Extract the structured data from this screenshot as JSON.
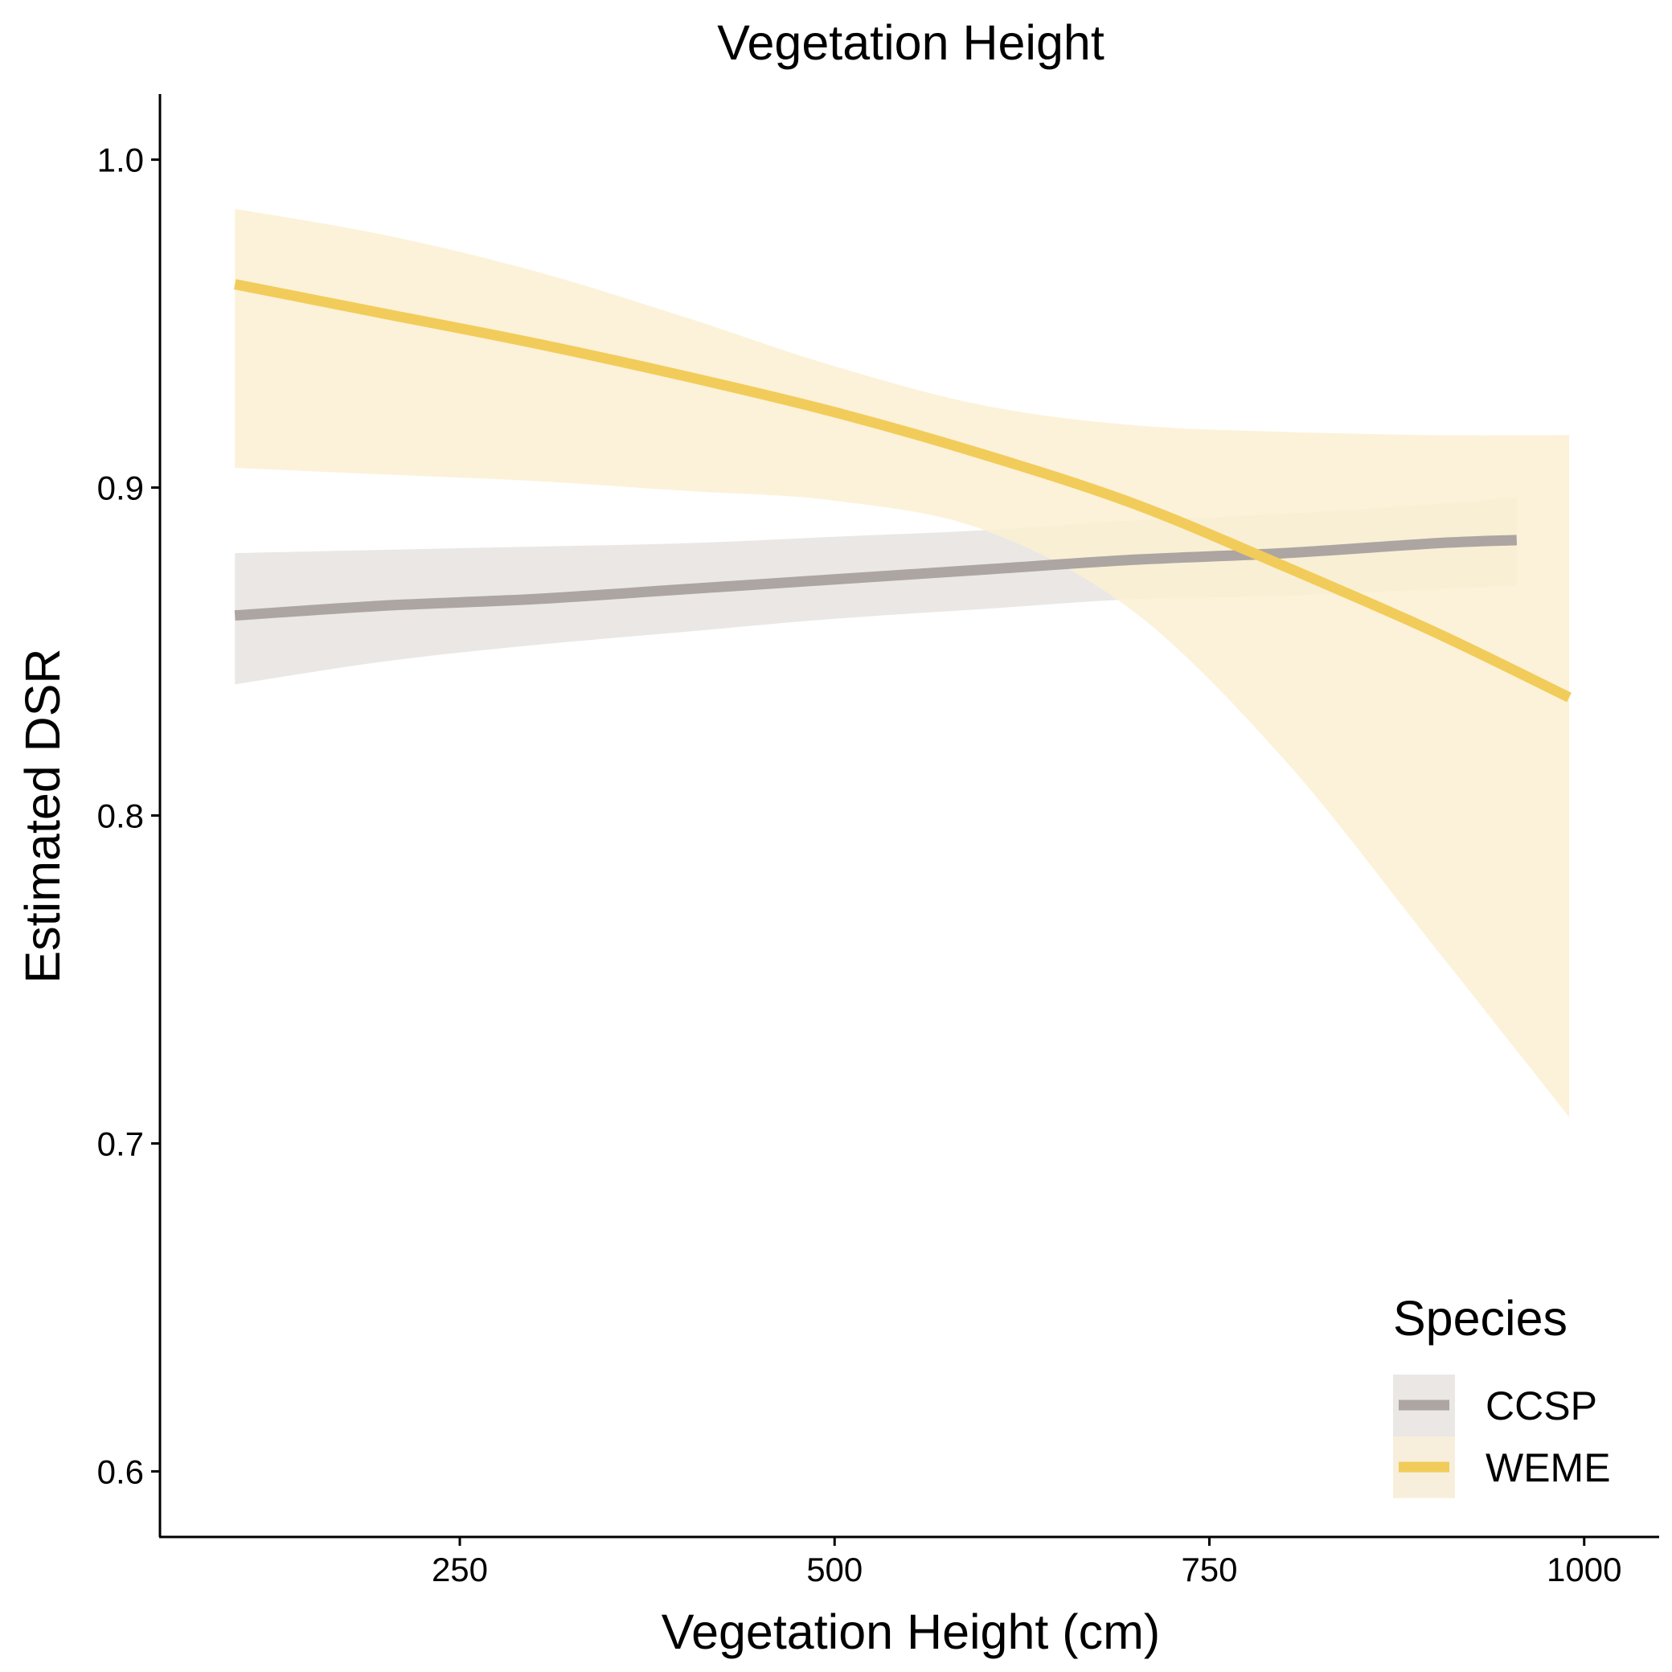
{
  "chart_data": {
    "type": "line",
    "title": "Vegetation Height",
    "xlabel": "Vegetation Height (cm)",
    "ylabel": "Estimated DSR",
    "xlim": [
      50,
      1050
    ],
    "ylim": [
      0.58,
      1.02
    ],
    "x_ticks": [
      250,
      500,
      750,
      1000
    ],
    "y_ticks": [
      0.6,
      0.7,
      0.8,
      0.9,
      1.0
    ],
    "x_tick_labels": [
      "250",
      "500",
      "750",
      "1000"
    ],
    "y_tick_labels": [
      "0.6",
      "0.7",
      "0.8",
      "0.9",
      "1.0"
    ],
    "grid": false,
    "legend": {
      "title": "Species",
      "placement": "bottom-right"
    },
    "series": [
      {
        "name": "CCSP",
        "color": "#ada5a1",
        "ribbon_color": "#e6e3e1",
        "x": [
          100,
          200,
          300,
          400,
          500,
          600,
          700,
          800,
          900,
          955
        ],
        "y": [
          0.861,
          0.864,
          0.866,
          0.869,
          0.872,
          0.875,
          0.878,
          0.88,
          0.883,
          0.884
        ],
        "lower": [
          0.84,
          0.847,
          0.852,
          0.856,
          0.86,
          0.863,
          0.866,
          0.867,
          0.869,
          0.87
        ],
        "upper": [
          0.88,
          0.881,
          0.882,
          0.883,
          0.885,
          0.887,
          0.89,
          0.892,
          0.895,
          0.897
        ]
      },
      {
        "name": "WEME",
        "color": "#f2cc5a",
        "ribbon_color": "#fbf0d2",
        "x": [
          100,
          200,
          300,
          400,
          500,
          600,
          700,
          800,
          900,
          990
        ],
        "y": [
          0.962,
          0.953,
          0.944,
          0.934,
          0.923,
          0.91,
          0.895,
          0.876,
          0.856,
          0.836
        ],
        "lower": [
          0.906,
          0.904,
          0.902,
          0.899,
          0.896,
          0.887,
          0.862,
          0.817,
          0.76,
          0.708
        ],
        "upper": [
          0.985,
          0.977,
          0.966,
          0.952,
          0.937,
          0.925,
          0.919,
          0.917,
          0.916,
          0.916
        ]
      }
    ]
  }
}
